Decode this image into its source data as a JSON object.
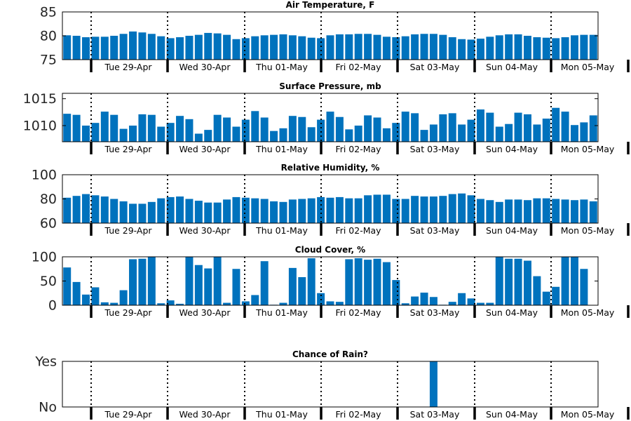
{
  "colors": {
    "bar": "#0072bd",
    "axis": "#000000",
    "separator": "#000000"
  },
  "shared": {
    "day_labels": [
      "Tue 29-Apr",
      "Wed 30-Apr",
      "Thu 01-May",
      "Fri 02-May",
      "Sat 03-May",
      "Sun 04-May",
      "Mon 05-May"
    ]
  },
  "chart_data": [
    {
      "type": "bar",
      "title": "Air Temperature, F",
      "ylim": [
        75,
        85
      ],
      "yticks": [
        "75",
        "80",
        "85"
      ],
      "ytick_values": [
        75,
        80,
        85
      ],
      "values": [
        80.1,
        80.0,
        79.7,
        79.8,
        79.8,
        80.0,
        80.4,
        80.9,
        80.7,
        80.4,
        79.9,
        79.5,
        79.7,
        80.0,
        80.2,
        80.6,
        80.5,
        80.2,
        79.3,
        79.5,
        79.9,
        80.1,
        80.2,
        80.3,
        80.1,
        79.9,
        79.6,
        79.5,
        80.1,
        80.3,
        80.3,
        80.4,
        80.4,
        80.2,
        79.8,
        79.7,
        79.9,
        80.3,
        80.4,
        80.4,
        80.2,
        79.7,
        79.3,
        79.2,
        79.4,
        79.8,
        80.1,
        80.3,
        80.3,
        80.0,
        79.7,
        79.6,
        79.5,
        79.7,
        80.1,
        80.2,
        80.2
      ]
    },
    {
      "type": "bar",
      "title": "Surface Pressure, mb",
      "ylim": [
        1007,
        1016
      ],
      "yticks": [
        "1010",
        "1015"
      ],
      "ytick_values": [
        1010,
        1015
      ],
      "values": [
        1012.2,
        1012.0,
        1010.0,
        1010.5,
        1012.6,
        1012.0,
        1009.4,
        1010.0,
        1012.1,
        1012.0,
        1009.8,
        1010.5,
        1011.8,
        1011.2,
        1008.5,
        1009.2,
        1012.0,
        1011.5,
        1009.8,
        1011.1,
        1012.7,
        1011.5,
        1009.0,
        1009.5,
        1011.8,
        1011.6,
        1009.7,
        1011.1,
        1012.6,
        1011.6,
        1009.3,
        1010.0,
        1011.9,
        1011.5,
        1009.5,
        1010.5,
        1012.6,
        1012.3,
        1009.2,
        1010.2,
        1012.1,
        1012.3,
        1010.2,
        1011.1,
        1013.0,
        1012.4,
        1009.8,
        1010.3,
        1012.4,
        1012.1,
        1010.2,
        1011.3,
        1013.3,
        1012.6,
        1010.1,
        1010.6,
        1011.9
      ]
    },
    {
      "type": "bar",
      "title": "Relative Humidity, %",
      "ylim": [
        60,
        100
      ],
      "yticks": [
        "60",
        "80",
        "100"
      ],
      "ytick_values": [
        60,
        80,
        100
      ],
      "values": [
        81.0,
        82.5,
        84.0,
        83.0,
        82.0,
        80.0,
        78.0,
        76.0,
        76.0,
        77.5,
        80.5,
        81.5,
        82.0,
        80.0,
        78.5,
        77.0,
        77.0,
        79.5,
        81.5,
        81.0,
        80.5,
        80.0,
        78.0,
        77.5,
        79.5,
        80.0,
        80.5,
        81.5,
        81.0,
        81.5,
        80.5,
        80.5,
        83.0,
        83.5,
        83.5,
        80.0,
        80.0,
        82.5,
        82.0,
        82.0,
        82.5,
        84.0,
        84.5,
        83.0,
        80.0,
        79.0,
        77.5,
        79.5,
        79.5,
        79.0,
        80.5,
        80.5,
        80.0,
        79.5,
        79.0,
        79.5,
        78.0
      ]
    },
    {
      "type": "bar",
      "title": "Cloud Cover, %",
      "ylim": [
        0,
        100
      ],
      "yticks": [
        "0",
        "50",
        "100"
      ],
      "ytick_values": [
        0,
        50,
        100
      ],
      "values": [
        78,
        48,
        22,
        37,
        6,
        5,
        31,
        95,
        96,
        100,
        4,
        10,
        3,
        100,
        83,
        76,
        100,
        5,
        75,
        8,
        21,
        91,
        1,
        5,
        77,
        58,
        97,
        25,
        8,
        7,
        95,
        97,
        94,
        96,
        89,
        52,
        4,
        18,
        26,
        17,
        1,
        7,
        25,
        14,
        5,
        5,
        100,
        96,
        96,
        92,
        60,
        28,
        38,
        100,
        100,
        75,
        0
      ]
    },
    {
      "type": "bar",
      "title": "Chance of Rain?",
      "ylim": [
        0,
        1
      ],
      "yticks": [
        "No",
        "Yes"
      ],
      "ytick_values": [
        0,
        1
      ],
      "values": [
        0,
        0,
        0,
        0,
        0,
        0,
        0,
        0,
        0,
        0,
        0,
        0,
        0,
        0,
        0,
        0,
        0,
        0,
        0,
        0,
        0,
        0,
        0,
        0,
        0,
        0,
        0,
        0,
        0,
        0,
        0,
        0,
        0,
        0,
        0,
        0,
        0,
        0,
        0,
        1,
        0,
        0,
        0,
        0,
        0,
        0,
        0,
        0,
        0,
        0,
        0,
        0,
        0,
        0,
        0,
        0,
        0
      ]
    }
  ]
}
